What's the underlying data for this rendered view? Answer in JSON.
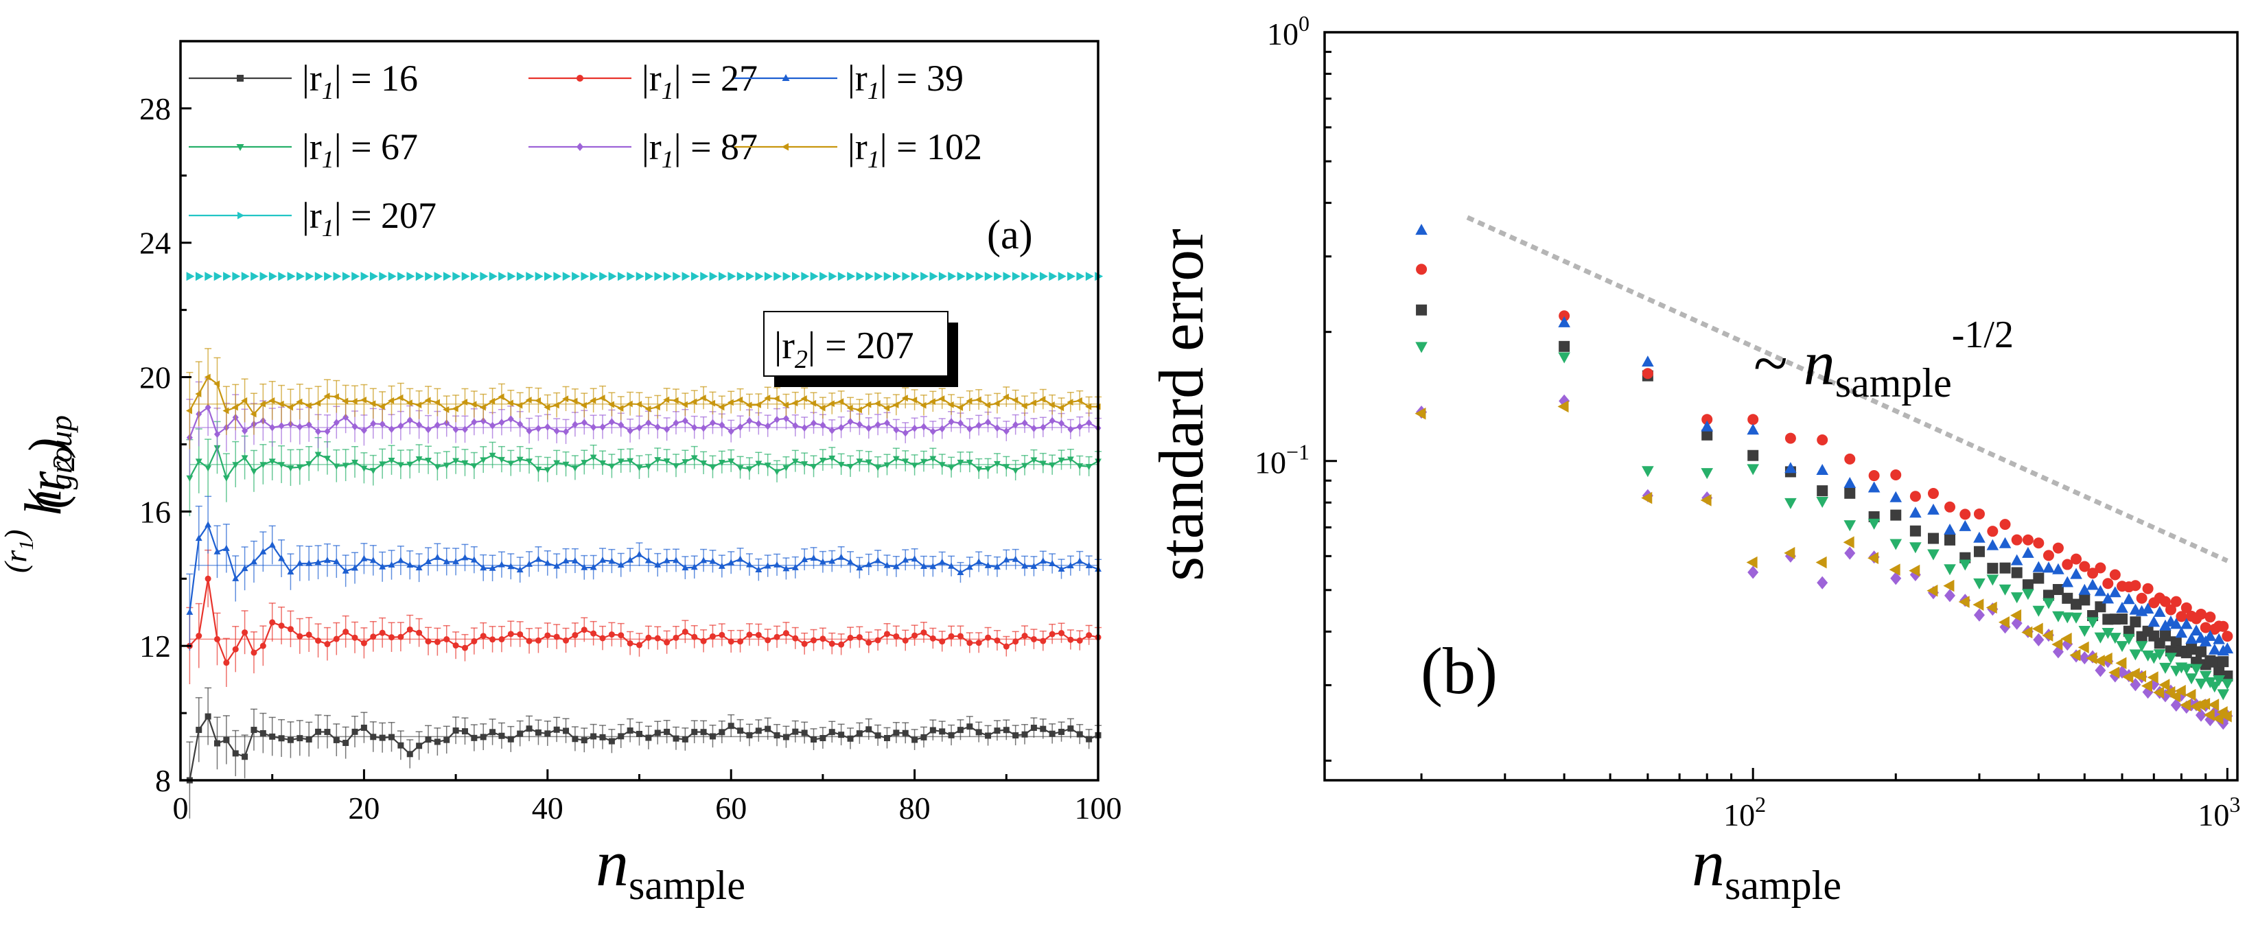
{
  "chart_data": [
    {
      "type": "line",
      "panel_label": "(a)",
      "xlabel": {
        "main": "n",
        "sub": "sample"
      },
      "ylabel": {
        "base": "h",
        "sub": "group",
        "sup": "(r",
        "sup_sub": "1",
        "sup_close": ")",
        "arg": "(r",
        "arg_sub": "2",
        "arg_close": ")"
      },
      "xlim": [
        0,
        100
      ],
      "ylim": [
        8,
        30
      ],
      "xticks": [
        0,
        20,
        40,
        60,
        80,
        100
      ],
      "yticks": [
        8,
        12,
        16,
        20,
        24,
        28
      ],
      "annotation": {
        "lhs": "|r",
        "sub": "2",
        "rhs": "| = 207"
      },
      "legend_prefix": "|r",
      "legend_sub": "1",
      "series": [
        {
          "name": "16",
          "legend": "| = 16",
          "color": "#3d3d3d",
          "marker": "square",
          "final": 9.3,
          "points": [
            [
              1,
              8.0
            ],
            [
              2,
              9.5
            ],
            [
              3,
              9.9
            ],
            [
              4,
              9.1
            ],
            [
              5,
              9.2
            ],
            [
              6,
              8.8
            ],
            [
              7,
              8.7
            ],
            [
              8,
              9.5
            ],
            [
              9,
              9.4
            ],
            [
              10,
              9.3
            ],
            [
              12,
              9.2
            ],
            [
              15,
              9.4
            ],
            [
              18,
              9.2
            ],
            [
              20,
              9.5
            ],
            [
              22,
              9.3
            ],
            [
              25,
              8.9
            ],
            [
              30,
              9.4
            ],
            [
              35,
              9.3
            ],
            [
              40,
              9.5
            ],
            [
              45,
              9.2
            ],
            [
              50,
              9.4
            ],
            [
              55,
              9.3
            ],
            [
              60,
              9.5
            ],
            [
              65,
              9.4
            ],
            [
              70,
              9.3
            ],
            [
              75,
              9.4
            ],
            [
              80,
              9.3
            ],
            [
              85,
              9.5
            ],
            [
              90,
              9.4
            ],
            [
              95,
              9.5
            ],
            [
              100,
              9.3
            ]
          ]
        },
        {
          "name": "27",
          "legend": "| = 27",
          "color": "#e8332b",
          "marker": "circle",
          "final": 12.2,
          "points": [
            [
              1,
              12.0
            ],
            [
              2,
              12.3
            ],
            [
              3,
              14.0
            ],
            [
              4,
              12.2
            ],
            [
              5,
              11.5
            ],
            [
              6,
              11.9
            ],
            [
              7,
              12.4
            ],
            [
              8,
              11.8
            ],
            [
              9,
              12.0
            ],
            [
              10,
              12.7
            ],
            [
              12,
              12.5
            ],
            [
              15,
              12.1
            ],
            [
              18,
              12.3
            ],
            [
              20,
              12.2
            ],
            [
              25,
              12.4
            ],
            [
              30,
              12.0
            ],
            [
              35,
              12.3
            ],
            [
              40,
              12.2
            ],
            [
              45,
              12.4
            ],
            [
              50,
              12.1
            ],
            [
              55,
              12.3
            ],
            [
              60,
              12.2
            ],
            [
              65,
              12.3
            ],
            [
              70,
              12.1
            ],
            [
              75,
              12.2
            ],
            [
              80,
              12.3
            ],
            [
              85,
              12.2
            ],
            [
              90,
              12.1
            ],
            [
              95,
              12.3
            ],
            [
              100,
              12.2
            ]
          ]
        },
        {
          "name": "39",
          "legend": "| = 39",
          "color": "#1d5fd1",
          "marker": "triangle-up",
          "final": 14.4,
          "points": [
            [
              1,
              13.0
            ],
            [
              2,
              15.2
            ],
            [
              3,
              15.6
            ],
            [
              4,
              14.8
            ],
            [
              5,
              14.9
            ],
            [
              6,
              14.0
            ],
            [
              7,
              14.3
            ],
            [
              8,
              14.5
            ],
            [
              9,
              14.8
            ],
            [
              10,
              15.0
            ],
            [
              12,
              14.2
            ],
            [
              15,
              14.6
            ],
            [
              18,
              14.3
            ],
            [
              20,
              14.5
            ],
            [
              25,
              14.4
            ],
            [
              30,
              14.6
            ],
            [
              35,
              14.3
            ],
            [
              40,
              14.5
            ],
            [
              45,
              14.4
            ],
            [
              50,
              14.6
            ],
            [
              55,
              14.4
            ],
            [
              60,
              14.5
            ],
            [
              65,
              14.3
            ],
            [
              70,
              14.6
            ],
            [
              75,
              14.4
            ],
            [
              80,
              14.5
            ],
            [
              85,
              14.3
            ],
            [
              90,
              14.5
            ],
            [
              95,
              14.4
            ],
            [
              100,
              14.4
            ]
          ]
        },
        {
          "name": "67",
          "legend": "| = 67",
          "color": "#27b06a",
          "marker": "triangle-down",
          "final": 17.4,
          "points": [
            [
              1,
              17.0
            ],
            [
              2,
              17.5
            ],
            [
              3,
              17.3
            ],
            [
              4,
              17.9
            ],
            [
              5,
              17.0
            ],
            [
              6,
              17.4
            ],
            [
              7,
              17.6
            ],
            [
              8,
              17.2
            ],
            [
              9,
              17.4
            ],
            [
              10,
              17.5
            ],
            [
              12,
              17.3
            ],
            [
              15,
              17.6
            ],
            [
              18,
              17.4
            ],
            [
              20,
              17.3
            ],
            [
              25,
              17.5
            ],
            [
              30,
              17.4
            ],
            [
              35,
              17.6
            ],
            [
              40,
              17.3
            ],
            [
              45,
              17.5
            ],
            [
              50,
              17.4
            ],
            [
              55,
              17.5
            ],
            [
              60,
              17.4
            ],
            [
              65,
              17.3
            ],
            [
              70,
              17.5
            ],
            [
              75,
              17.4
            ],
            [
              80,
              17.5
            ],
            [
              85,
              17.4
            ],
            [
              90,
              17.3
            ],
            [
              95,
              17.5
            ],
            [
              100,
              17.4
            ]
          ]
        },
        {
          "name": "87",
          "legend": "| = 87",
          "color": "#9d63d8",
          "marker": "diamond",
          "final": 18.5,
          "points": [
            [
              1,
              18.2
            ],
            [
              2,
              18.9
            ],
            [
              3,
              19.1
            ],
            [
              4,
              18.3
            ],
            [
              5,
              18.5
            ],
            [
              6,
              18.8
            ],
            [
              7,
              18.4
            ],
            [
              8,
              18.6
            ],
            [
              9,
              18.7
            ],
            [
              10,
              18.5
            ],
            [
              12,
              18.6
            ],
            [
              15,
              18.4
            ],
            [
              18,
              18.7
            ],
            [
              20,
              18.5
            ],
            [
              25,
              18.6
            ],
            [
              30,
              18.5
            ],
            [
              35,
              18.7
            ],
            [
              40,
              18.4
            ],
            [
              45,
              18.6
            ],
            [
              50,
              18.5
            ],
            [
              55,
              18.6
            ],
            [
              60,
              18.5
            ],
            [
              65,
              18.7
            ],
            [
              70,
              18.5
            ],
            [
              75,
              18.6
            ],
            [
              80,
              18.4
            ],
            [
              85,
              18.6
            ],
            [
              90,
              18.5
            ],
            [
              95,
              18.6
            ],
            [
              100,
              18.5
            ]
          ]
        },
        {
          "name": "102",
          "legend": "| = 102",
          "color": "#c8960f",
          "marker": "triangle-left",
          "final": 19.2,
          "points": [
            [
              1,
              19.0
            ],
            [
              2,
              19.5
            ],
            [
              3,
              20.0
            ],
            [
              4,
              19.8
            ],
            [
              5,
              19.0
            ],
            [
              6,
              19.1
            ],
            [
              7,
              19.3
            ],
            [
              8,
              18.9
            ],
            [
              9,
              19.2
            ],
            [
              10,
              19.3
            ],
            [
              12,
              19.1
            ],
            [
              15,
              19.3
            ],
            [
              18,
              19.4
            ],
            [
              20,
              19.2
            ],
            [
              25,
              19.3
            ],
            [
              30,
              19.1
            ],
            [
              35,
              19.3
            ],
            [
              40,
              19.2
            ],
            [
              45,
              19.3
            ],
            [
              50,
              19.1
            ],
            [
              55,
              19.3
            ],
            [
              60,
              19.2
            ],
            [
              65,
              19.3
            ],
            [
              70,
              19.2
            ],
            [
              75,
              19.1
            ],
            [
              80,
              19.3
            ],
            [
              85,
              19.2
            ],
            [
              90,
              19.3
            ],
            [
              95,
              19.2
            ],
            [
              100,
              19.2
            ]
          ]
        },
        {
          "name": "207",
          "legend": "| = 207",
          "color": "#22c5c5",
          "marker": "triangle-right",
          "final": 23.0,
          "points": [
            [
              1,
              23.0
            ],
            [
              100,
              23.0
            ]
          ]
        }
      ]
    },
    {
      "type": "scatter",
      "panel_label": "(b)",
      "xscale": "log",
      "yscale": "log",
      "xlim": [
        12.5,
        1050
      ],
      "ylim": [
        0.018,
        1.0
      ],
      "xticks": [
        {
          "value": 100,
          "base": "10",
          "exp": "2"
        },
        {
          "value": 1000,
          "base": "10",
          "exp": "3"
        }
      ],
      "yticks": [
        {
          "value": 0.1,
          "base": "10",
          "exp": "−1"
        },
        {
          "value": 1.0,
          "base": "10",
          "exp": "0"
        }
      ],
      "ylabel": "standard error",
      "xlabel": {
        "main": "n",
        "sub": "sample"
      },
      "guide": {
        "label_prefix": "~ ",
        "main": "n",
        "sub": "sample",
        "exp": "-1/2",
        "slope": -0.5,
        "x": [
          25,
          1000
        ],
        "y": [
          0.37,
          0.0585
        ]
      },
      "series": [
        {
          "name": "16",
          "color": "#3d3d3d",
          "marker": "square",
          "coef": 1.03,
          "points": [
            [
              20,
              0.225
            ],
            [
              40,
              0.185
            ],
            [
              60,
              0.158
            ],
            [
              80,
              0.115
            ],
            [
              100,
              0.103
            ]
          ]
        },
        {
          "name": "27",
          "color": "#e8332b",
          "marker": "circle",
          "coef": 1.27,
          "points": [
            [
              20,
              0.28
            ],
            [
              40,
              0.218
            ],
            [
              60,
              0.16
            ],
            [
              80,
              0.125
            ],
            [
              100,
              0.125
            ],
            [
              120,
              0.113
            ],
            [
              140,
              0.112
            ]
          ]
        },
        {
          "name": "39",
          "color": "#1d5fd1",
          "marker": "triangle-up",
          "coef": 1.15,
          "points": [
            [
              20,
              0.345
            ],
            [
              40,
              0.21
            ],
            [
              60,
              0.17
            ],
            [
              80,
              0.12
            ],
            [
              100,
              0.118
            ],
            [
              120,
              0.096
            ],
            [
              140,
              0.095
            ]
          ]
        },
        {
          "name": "67",
          "color": "#27b06a",
          "marker": "triangle-down",
          "coef": 0.93,
          "points": [
            [
              20,
              0.185
            ],
            [
              40,
              0.175
            ],
            [
              60,
              0.095
            ],
            [
              80,
              0.094
            ],
            [
              100,
              0.096
            ],
            [
              120,
              0.08
            ]
          ]
        },
        {
          "name": "87",
          "color": "#9d63d8",
          "marker": "diamond",
          "coef": 0.78,
          "points": [
            [
              20,
              0.13
            ],
            [
              40,
              0.138
            ],
            [
              60,
              0.083
            ],
            [
              80,
              0.082
            ],
            [
              100,
              0.055
            ],
            [
              120,
              0.06
            ],
            [
              140,
              0.052
            ]
          ]
        },
        {
          "name": "102",
          "color": "#c8960f",
          "marker": "triangle-left",
          "coef": 0.8,
          "points": [
            [
              20,
              0.129
            ],
            [
              40,
              0.134
            ],
            [
              60,
              0.082
            ],
            [
              80,
              0.081
            ],
            [
              100,
              0.058
            ],
            [
              120,
              0.061
            ],
            [
              140,
              0.058
            ]
          ]
        }
      ]
    }
  ]
}
